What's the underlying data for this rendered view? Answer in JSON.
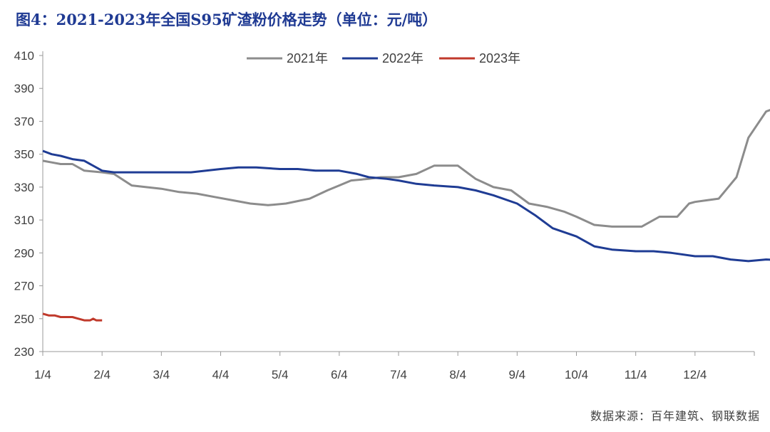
{
  "title": "图4：2021-2023年全国S95矿渣粉价格走势（单位：元/吨）",
  "source": "数据来源：百年建筑、钢联数据",
  "colors": {
    "2021": "#8c8c8c",
    "2022": "#1f3c94",
    "2023": "#c0392b",
    "axis": "#9a9a9a",
    "text": "#404040"
  },
  "chart_data": {
    "type": "line",
    "x_labels": [
      "1/4",
      "2/4",
      "3/4",
      "4/4",
      "5/4",
      "6/4",
      "7/4",
      "8/4",
      "9/4",
      "10/4",
      "11/4",
      "12/4"
    ],
    "ylim": [
      230,
      410
    ],
    "yticks": [
      230,
      250,
      270,
      290,
      310,
      330,
      350,
      370,
      390,
      410
    ],
    "legend": "top-center",
    "series": [
      {
        "name": "2021年",
        "color_key": "2021",
        "x": [
          0,
          0.15,
          0.3,
          0.5,
          0.7,
          1.0,
          1.2,
          1.5,
          2.0,
          2.3,
          2.6,
          2.9,
          3.2,
          3.5,
          3.8,
          4.1,
          4.5,
          4.8,
          5.0,
          5.2,
          5.5,
          5.7,
          6.0,
          6.3,
          6.6,
          7.0,
          7.3,
          7.6,
          7.9,
          8.2,
          8.5,
          8.8,
          9.0,
          9.3,
          9.6,
          9.8,
          10.1,
          10.4,
          10.7,
          10.8,
          10.9,
          11.0,
          11.2,
          11.4,
          11.7,
          11.9,
          12.2,
          12.5,
          12.7
        ],
        "values": [
          346,
          345,
          344,
          344,
          340,
          339,
          338,
          331,
          329,
          327,
          326,
          324,
          322,
          320,
          319,
          320,
          323,
          328,
          331,
          334,
          335,
          336,
          336,
          338,
          343,
          343,
          335,
          330,
          328,
          320,
          318,
          315,
          312,
          307,
          306,
          306,
          306,
          312,
          312,
          316,
          320,
          321,
          322,
          323,
          336,
          360,
          376,
          380,
          385
        ]
      },
      {
        "name": "2022年",
        "color_key": "2022",
        "x": [
          0,
          0.15,
          0.3,
          0.5,
          0.7,
          1.0,
          1.2,
          1.5,
          2.0,
          2.3,
          2.5,
          3.0,
          3.3,
          3.6,
          4.0,
          4.3,
          4.6,
          5.0,
          5.3,
          5.5,
          5.8,
          6.0,
          6.3,
          6.6,
          7.0,
          7.3,
          7.6,
          8.0,
          8.3,
          8.6,
          9.0,
          9.3,
          9.6,
          10.0,
          10.3,
          10.6,
          11.0,
          11.3,
          11.6,
          11.9,
          12.2,
          12.7
        ],
        "values": [
          352,
          350,
          349,
          347,
          346,
          340,
          339,
          339,
          339,
          339,
          339,
          341,
          342,
          342,
          341,
          341,
          340,
          340,
          338,
          336,
          335,
          334,
          332,
          331,
          330,
          328,
          325,
          320,
          313,
          305,
          300,
          294,
          292,
          291,
          291,
          290,
          288,
          288,
          286,
          285,
          286,
          285
        ]
      },
      {
        "name": "2023年",
        "color_key": "2023",
        "x": [
          0,
          0.1,
          0.2,
          0.3,
          0.4,
          0.5,
          0.6,
          0.7,
          0.8,
          0.85,
          0.9,
          1.0
        ],
        "values": [
          253,
          252,
          252,
          251,
          251,
          251,
          250,
          249,
          249,
          250,
          249,
          249
        ]
      }
    ]
  }
}
